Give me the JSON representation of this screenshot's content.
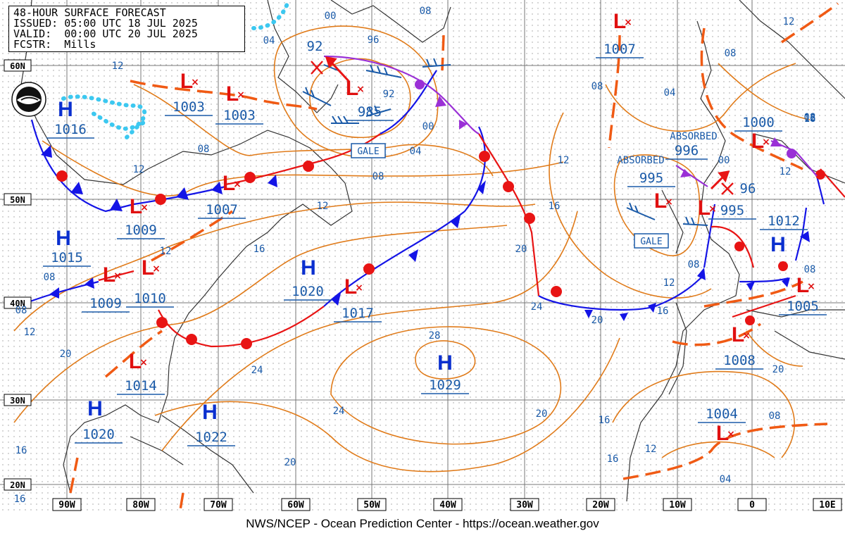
{
  "header": {
    "title": "48-HOUR SURFACE FORECAST",
    "issued": "ISSUED: 05:00 UTC 18 JUL 2025",
    "valid": "VALID:  00:00 UTC 20 JUL 2025",
    "forecaster": "FCSTR:  Mills"
  },
  "footer": "NWS/NCEP - Ocean Prediction Center - https://ocean.weather.gov",
  "colors": {
    "isobar": "#e07b1a",
    "blue_text": "#1a5aa8",
    "high": "#0a2fcf",
    "low": "#e01010",
    "cold_front": "#1414e6",
    "warm_front": "#e81414",
    "occluded": "#9a30d6",
    "trough": "#f05a14",
    "ice": "#3cc8f0",
    "coast": "#333333"
  },
  "longitude_labels": [
    "90W",
    "80W",
    "70W",
    "60W",
    "50W",
    "40W",
    "30W",
    "20W",
    "10W",
    "0",
    "10E"
  ],
  "latitude_labels": [
    "60N",
    "50N",
    "40N",
    "30N",
    "20N"
  ],
  "highs": [
    {
      "symbol": "H",
      "pressure": "1016"
    },
    {
      "symbol": "H",
      "pressure": "1015"
    },
    {
      "symbol": "H",
      "pressure": "1020"
    },
    {
      "symbol": "H",
      "pressure": "1029"
    },
    {
      "symbol": "H",
      "pressure": "1020"
    },
    {
      "symbol": "H",
      "pressure": "1022"
    },
    {
      "symbol": "H",
      "pressure": "1012"
    }
  ],
  "lows": [
    {
      "symbol": "L",
      "pressure": "1003"
    },
    {
      "symbol": "L",
      "pressure": "1003"
    },
    {
      "symbol": "L",
      "pressure": "985"
    },
    {
      "symbol": "L",
      "pressure": "1007"
    },
    {
      "symbol": "L",
      "pressure": "1009"
    },
    {
      "symbol": "L",
      "pressure": "1007"
    },
    {
      "symbol": "L",
      "pressure": "1009"
    },
    {
      "symbol": "L",
      "pressure": "1010"
    },
    {
      "symbol": "L",
      "pressure": "1017"
    },
    {
      "symbol": "L",
      "pressure": "1014"
    },
    {
      "symbol": "L",
      "pressure": "995"
    },
    {
      "symbol": "L",
      "pressure": "995"
    },
    {
      "symbol": "L",
      "pressure": "1000"
    },
    {
      "symbol": "L",
      "pressure": "1005"
    },
    {
      "symbol": "L",
      "pressure": "1008"
    },
    {
      "symbol": "L",
      "pressure": "1004"
    }
  ],
  "gale_labels": [
    "GALE",
    "GALE"
  ],
  "absorbed_labels": [
    {
      "text": "ABSORBED",
      "pressure": "996"
    },
    {
      "text": "ABSORBED",
      "pressure": ""
    }
  ],
  "prior_positions": [
    "92",
    "96"
  ],
  "isobar_labels": [
    "04",
    "00",
    "08",
    "96",
    "92",
    "00",
    "04",
    "08",
    "12",
    "08",
    "12",
    "12",
    "16",
    "12",
    "08",
    "12",
    "16",
    "20",
    "24",
    "28",
    "24",
    "20",
    "20",
    "16",
    "16",
    "20",
    "24",
    "20",
    "16",
    "12",
    "08",
    "08",
    "12",
    "16",
    "20",
    "12",
    "08",
    "04",
    "08",
    "12",
    "08",
    "04",
    "00",
    "16",
    "08",
    "12",
    "16",
    "12",
    "08"
  ]
}
